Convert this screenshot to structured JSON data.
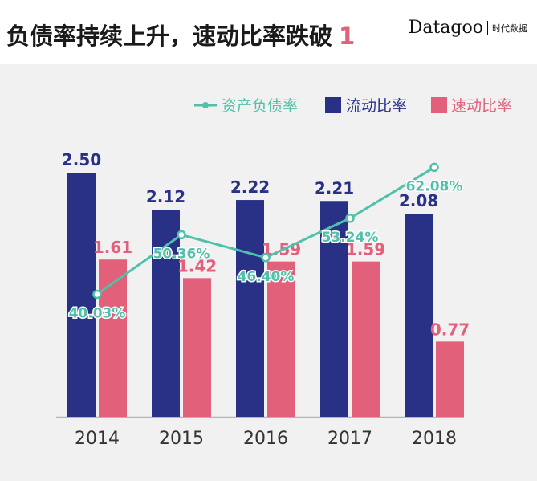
{
  "header": {
    "title": "负债率持续上升，速动比率跌破",
    "title_number": "1",
    "brand_name": "Datagoo",
    "brand_sub": "时代数据"
  },
  "colors": {
    "current_ratio": "#283186",
    "quick_ratio": "#e2607a",
    "debt_ratio": "#4fc1a9",
    "value_label_current": "#283186",
    "value_label_quick": "#e2607a"
  },
  "chart_data": {
    "type": "bar",
    "title": "负债率持续上升，速动比率跌破 1",
    "categories": [
      "2014",
      "2015",
      "2016",
      "2017",
      "2018"
    ],
    "ylim": [
      0,
      2.8
    ],
    "legend_position": "top-right",
    "series": [
      {
        "name": "流动比率",
        "kind": "bar",
        "values": [
          2.5,
          2.12,
          2.22,
          2.21,
          2.08
        ],
        "labels": [
          "2.50",
          "2.12",
          "2.22",
          "2.21",
          "2.08"
        ]
      },
      {
        "name": "速动比率",
        "kind": "bar",
        "values": [
          1.61,
          1.42,
          1.59,
          1.59,
          0.77
        ],
        "labels": [
          "1.61",
          "1.42",
          "1.59",
          "1.59",
          "0.77"
        ]
      },
      {
        "name": "资产负债率",
        "kind": "line",
        "values": [
          40.03,
          50.36,
          46.4,
          53.24,
          62.08
        ],
        "labels": [
          "40.03%",
          "50.36%",
          "46.40%",
          "53.24%",
          "62.08%"
        ],
        "ylim": [
          20,
          80
        ]
      }
    ],
    "legend": [
      "资产负债率",
      "流动比率",
      "速动比率"
    ]
  }
}
